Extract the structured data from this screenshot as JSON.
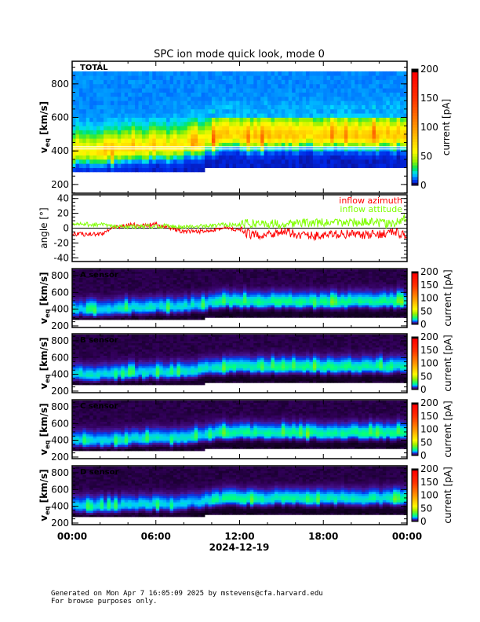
{
  "chart_data": {
    "type": "heatmap",
    "title": "SPC ion mode quick look, mode 0",
    "date_label": "2024-12-19",
    "x_ticks": [
      "00:00",
      "06:00",
      "12:00",
      "18:00",
      "00:00"
    ],
    "x_range_hours": [
      0,
      24
    ],
    "colorbar_label": "current [pA]",
    "spectrogram_panels": [
      {
        "label": "TOTAL",
        "ylabel": "v_eq [km/s]",
        "ylim": [
          148,
          935
        ],
        "y_ticks": [
          200,
          400,
          600,
          800
        ],
        "cbar_ticks": [
          0,
          50,
          100,
          150,
          200
        ],
        "scale": 1.0
      },
      {
        "label": "A sensor",
        "ylabel": "v_eq [km/s]",
        "ylim": [
          181,
          884
        ],
        "y_ticks": [
          200,
          400,
          600,
          800
        ],
        "cbar_ticks": [
          0,
          50,
          100,
          150,
          200
        ],
        "scale": 0.3
      },
      {
        "label": "B sensor",
        "ylabel": "v_eq [km/s]",
        "ylim": [
          181,
          884
        ],
        "y_ticks": [
          200,
          400,
          600,
          800
        ],
        "cbar_ticks": [
          0,
          50,
          100,
          150,
          200
        ],
        "scale": 0.3
      },
      {
        "label": "C sensor",
        "ylabel": "v_eq [km/s]",
        "ylim": [
          181,
          884
        ],
        "y_ticks": [
          200,
          400,
          600,
          800
        ],
        "cbar_ticks": [
          0,
          50,
          100,
          150,
          200
        ],
        "scale": 0.3
      },
      {
        "label": "D sensor",
        "ylabel": "v_eq [km/s]",
        "ylim": [
          181,
          884
        ],
        "y_ticks": [
          200,
          400,
          600,
          800
        ],
        "cbar_ticks": [
          0,
          50,
          100,
          150,
          200
        ],
        "scale": 0.28
      }
    ],
    "hours": [
      0,
      1,
      2,
      3,
      4,
      5,
      6,
      7,
      8,
      9,
      10,
      11,
      12,
      13,
      14,
      15,
      16,
      17,
      18,
      19,
      20,
      21,
      22,
      23,
      24
    ],
    "peak_speed_kms": [
      390,
      385,
      385,
      395,
      405,
      410,
      420,
      410,
      425,
      440,
      465,
      480,
      480,
      475,
      480,
      485,
      480,
      480,
      478,
      480,
      480,
      478,
      480,
      480,
      490
    ],
    "lower_cutoff_kms": [
      265,
      265,
      268,
      270,
      272,
      272,
      262,
      268,
      265,
      280,
      295,
      300,
      300,
      300,
      300,
      300,
      300,
      300,
      300,
      300,
      300,
      300,
      300,
      300,
      300
    ],
    "upper_cutoff_kms": 880,
    "angle_panel": {
      "ylabel": "angle [°]",
      "ylim": [
        -45,
        45
      ],
      "y_ticks": [
        -40,
        -20,
        0,
        20,
        40
      ],
      "series": [
        {
          "name": "inflow azimuth",
          "color": "#ff0000",
          "values": [
            -8,
            -8,
            -8,
            0,
            5,
            3,
            5,
            0,
            -5,
            -5,
            -2,
            0,
            -3,
            -10,
            -8,
            -5,
            -8,
            -10,
            -10,
            -8,
            -8,
            -10,
            -8,
            -5,
            -10
          ]
        },
        {
          "name": "inflow attitude",
          "color": "#80ff00",
          "values": [
            5,
            5,
            5,
            2,
            2,
            2,
            3,
            3,
            2,
            2,
            3,
            5,
            5,
            7,
            6,
            6,
            7,
            7,
            7,
            7,
            8,
            8,
            7,
            5,
            15
          ]
        }
      ]
    }
  },
  "footer": {
    "line1": "Generated on Mon Apr  7 16:05:09 2025 by mstevens@cfa.harvard.edu",
    "line2": "For browse purposes only."
  }
}
